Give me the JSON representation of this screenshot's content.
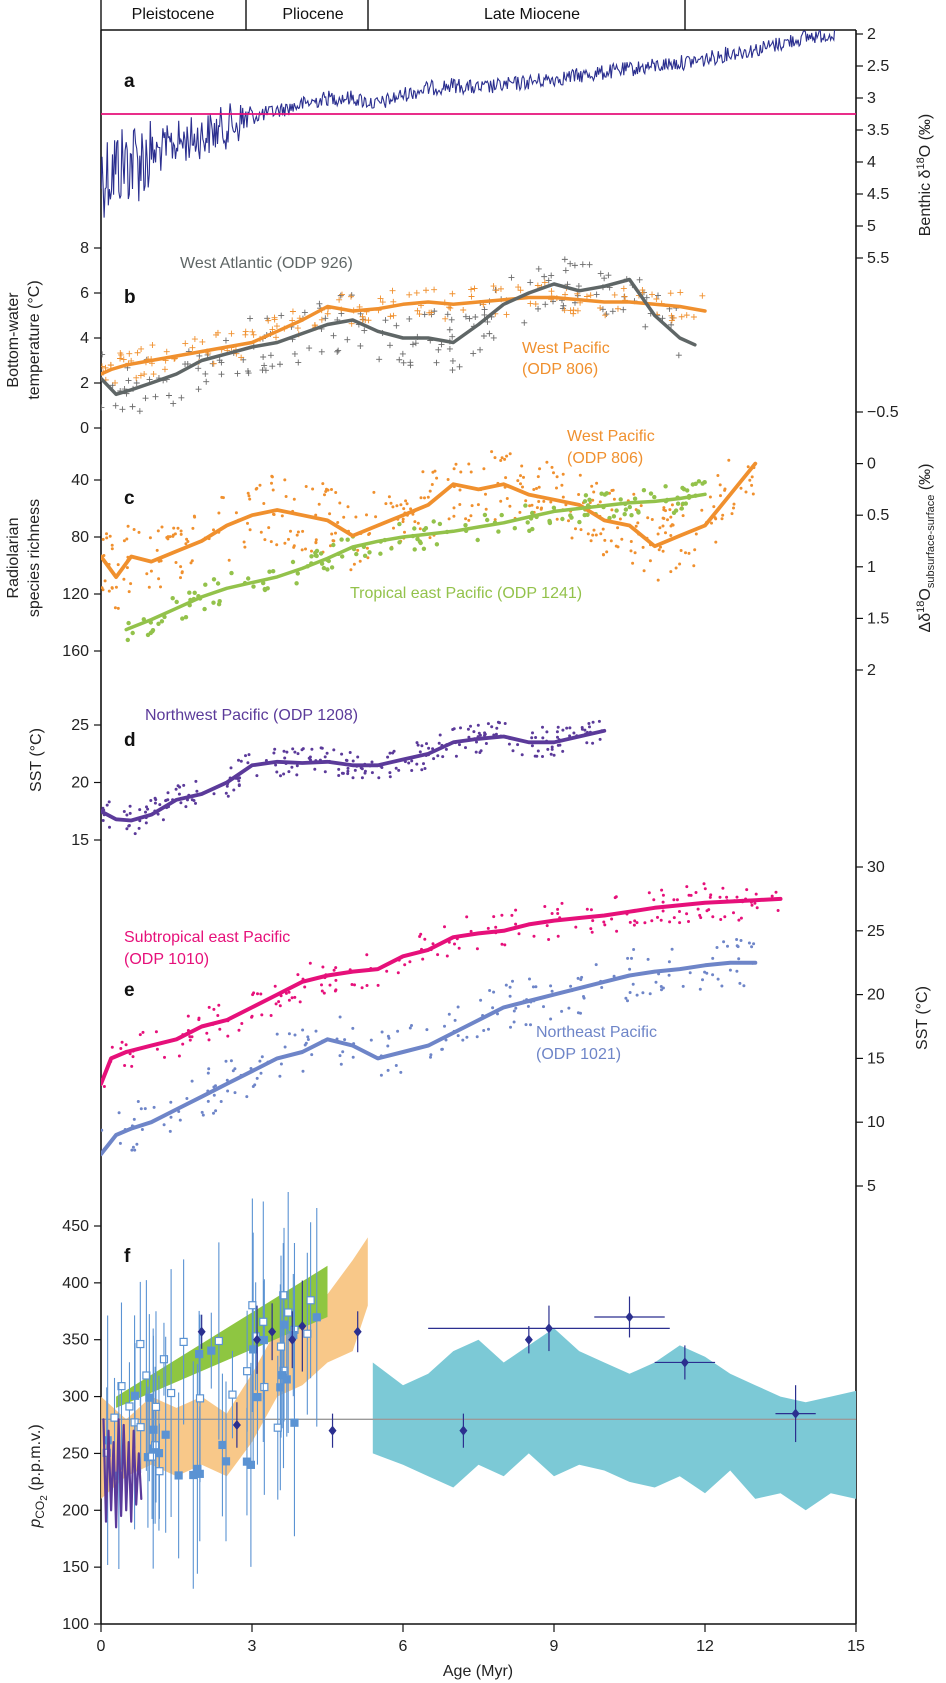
{
  "chart_data": {
    "type": "line",
    "xlabel": "Age (Myr)",
    "x_ticks": [
      0,
      3,
      6,
      9,
      12,
      15
    ],
    "xlim": [
      0,
      15
    ],
    "epochs": [
      {
        "label": "Pleistocene",
        "start": 0,
        "end": 2.9
      },
      {
        "label": "Pliocene",
        "start": 2.9,
        "end": 5.3
      },
      {
        "label": "Late Miocene",
        "start": 5.3,
        "end": 11.6
      }
    ],
    "colors": {
      "navy": "#2b2f8f",
      "pink": "#e6107a",
      "orange": "#f0902e",
      "gray": "#5f6666",
      "green": "#93c24b",
      "purple": "#5b3a9a",
      "blue": "#6e85c8",
      "lightblue": "#5b93d3",
      "cyan": "#7cc9d6",
      "peach": "#f7c27c",
      "brightgreen": "#8ec641"
    },
    "panels": [
      {
        "letter": "a",
        "y_label_right": "Benthic δ18O (‰)",
        "y_ticks_right": [
          "2",
          "2.5",
          "3",
          "3.5",
          "4",
          "4.5",
          "5",
          "5.5"
        ],
        "ylim_right": [
          2,
          5.5
        ],
        "reference_line": 3.25,
        "series": [
          {
            "x": [
              0,
              0.5,
              1,
              1.5,
              2,
              2.5,
              3,
              3.5,
              4,
              4.5,
              5,
              5.5,
              6,
              6.5,
              7,
              7.5,
              8,
              8.5,
              9,
              9.5,
              10,
              10.5,
              11,
              11.5,
              12,
              12.5,
              13,
              13.5,
              14,
              14.5
            ],
            "y": [
              4.2,
              4.0,
              3.9,
              3.7,
              3.6,
              3.45,
              3.3,
              3.2,
              3.1,
              3.0,
              3.0,
              3.1,
              2.95,
              2.85,
              2.8,
              2.85,
              2.8,
              2.75,
              2.7,
              2.65,
              2.6,
              2.55,
              2.5,
              2.45,
              2.4,
              2.3,
              2.25,
              2.15,
              2.05,
              2.0
            ]
          }
        ]
      },
      {
        "letter": "b",
        "y_label_left": "Bottom-water temperature (°C)",
        "y_ticks_left": [
          "0",
          "2",
          "4",
          "6",
          "8"
        ],
        "ylim_left": [
          0,
          8
        ],
        "series": [
          {
            "name": "West Atlantic (ODP 926)",
            "x": [
              0,
              0.3,
              0.6,
              1,
              1.5,
              2,
              2.5,
              3,
              3.5,
              4,
              4.5,
              5,
              5.5,
              6,
              6.5,
              7,
              7.5,
              8,
              8.5,
              9,
              9.5,
              10,
              10.5,
              11,
              11.5,
              11.8
            ],
            "y": [
              2.2,
              1.5,
              1.7,
              2.0,
              2.4,
              3.0,
              3.3,
              3.6,
              3.8,
              4.2,
              4.6,
              4.8,
              4.3,
              4.0,
              4.0,
              3.8,
              4.6,
              5.5,
              6.0,
              6.4,
              6.1,
              6.3,
              6.6,
              5.0,
              4.0,
              3.7
            ]
          },
          {
            "name": "West Pacific (ODP 806)",
            "x": [
              0,
              0.2,
              0.5,
              1,
              1.5,
              2,
              2.5,
              3,
              3.5,
              4,
              4.5,
              5,
              5.5,
              6,
              6.5,
              7,
              7.5,
              8,
              8.5,
              9,
              9.5,
              10,
              10.5,
              11,
              11.5,
              12
            ],
            "y": [
              2.4,
              2.6,
              2.8,
              3.0,
              3.2,
              3.4,
              3.6,
              3.8,
              4.3,
              4.8,
              5.4,
              5.2,
              5.3,
              5.5,
              5.6,
              5.5,
              5.6,
              5.7,
              5.8,
              5.8,
              5.7,
              5.6,
              5.6,
              5.5,
              5.4,
              5.2
            ]
          }
        ]
      },
      {
        "letter": "c",
        "y_label_left": "Radiolarian species richness",
        "y_ticks_left": [
          "40",
          "80",
          "120",
          "160"
        ],
        "ylim_left": [
          30,
          160
        ],
        "y_label_right": "Δδ18O subsurface-surface (‰)",
        "y_ticks_right": [
          "−0.5",
          "0",
          "0.5",
          "1",
          "1.5",
          "2"
        ],
        "ylim_right": [
          -0.5,
          2
        ],
        "series": [
          {
            "name": "West Pacific (ODP 806)",
            "axis": "right",
            "x": [
              0,
              0.3,
              0.6,
              1,
              1.5,
              2,
              2.5,
              3,
              3.5,
              4,
              4.5,
              5,
              5.5,
              6,
              6.5,
              7,
              7.5,
              8,
              8.5,
              9,
              9.5,
              10,
              10.5,
              11,
              11.5,
              12,
              12.5,
              13
            ],
            "y": [
              0.9,
              1.1,
              0.9,
              0.95,
              0.85,
              0.75,
              0.6,
              0.5,
              0.45,
              0.5,
              0.55,
              0.7,
              0.6,
              0.5,
              0.4,
              0.2,
              0.25,
              0.2,
              0.3,
              0.35,
              0.4,
              0.55,
              0.6,
              0.8,
              0.7,
              0.6,
              0.3,
              0.0
            ]
          },
          {
            "name": "Tropical east Pacific (ODP 1241)",
            "axis": "left",
            "x": [
              0.5,
              1,
              1.5,
              2,
              2.5,
              3,
              3.5,
              4,
              4.5,
              5,
              5.5,
              6,
              6.5,
              7,
              7.5,
              8,
              8.5,
              9,
              9.5,
              10,
              10.5,
              11,
              11.5,
              12
            ],
            "y": [
              145,
              138,
              130,
              122,
              116,
              112,
              108,
              102,
              95,
              87,
              83,
              80,
              78,
              76,
              73,
              70,
              66,
              62,
              60,
              58,
              56,
              55,
              53,
              50
            ]
          }
        ]
      },
      {
        "letter": "d",
        "y_label_left": "SST (°C)",
        "y_ticks_left": [
          "15",
          "20",
          "25"
        ],
        "ylim_left": [
          15,
          25
        ],
        "series": [
          {
            "name": "Northwest Pacific (ODP 1208)",
            "x": [
              0,
              0.3,
              0.6,
              1,
              1.5,
              2,
              2.5,
              3,
              3.5,
              4,
              4.5,
              5,
              5.5,
              6,
              6.5,
              7,
              7.5,
              8,
              8.5,
              9,
              9.5,
              10
            ],
            "y": [
              17.5,
              16.8,
              16.7,
              17.2,
              18.5,
              19.0,
              20.0,
              21.5,
              21.8,
              21.7,
              21.8,
              21.5,
              21.5,
              22.0,
              22.5,
              23.5,
              23.8,
              24.0,
              23.5,
              23.5,
              24.0,
              24.5
            ]
          }
        ]
      },
      {
        "letter": "e",
        "y_label_right": "SST (°C)",
        "y_ticks_right": [
          "5",
          "10",
          "15",
          "20",
          "25",
          "30"
        ],
        "ylim_right": [
          5,
          30
        ],
        "series": [
          {
            "name": "Subtropical east Pacific (ODP 1010)",
            "x": [
              0,
              0.2,
              0.5,
              1,
              1.5,
              2,
              2.5,
              3,
              3.5,
              4,
              4.5,
              5,
              5.5,
              6,
              6.5,
              7,
              7.5,
              8,
              8.5,
              9,
              9.5,
              10,
              10.5,
              11,
              11.5,
              12,
              12.5,
              13,
              13.5
            ],
            "y": [
              13.0,
              15.0,
              15.5,
              16.0,
              16.5,
              17.5,
              18.0,
              19.0,
              20.0,
              21.0,
              21.5,
              21.8,
              22.0,
              23.0,
              23.5,
              24.5,
              24.8,
              25.0,
              25.5,
              25.8,
              26.0,
              26.2,
              26.5,
              26.8,
              27.0,
              27.2,
              27.3,
              27.4,
              27.5
            ]
          },
          {
            "name": "Northeast Pacific (ODP 1021)",
            "x": [
              0,
              0.3,
              0.6,
              1,
              1.5,
              2,
              2.5,
              3,
              3.5,
              4,
              4.5,
              5,
              5.5,
              6,
              6.5,
              7,
              7.5,
              8,
              8.5,
              9,
              9.5,
              10,
              10.5,
              11,
              11.5,
              12,
              12.5,
              13
            ],
            "y": [
              7.5,
              9.0,
              9.5,
              10.0,
              11.0,
              12.0,
              13.0,
              14.0,
              15.0,
              15.5,
              16.5,
              16.0,
              15.0,
              15.5,
              16.0,
              17.0,
              18.0,
              19.0,
              19.5,
              20.0,
              20.5,
              21.0,
              21.5,
              21.8,
              22.0,
              22.3,
              22.5,
              22.5
            ]
          }
        ]
      },
      {
        "letter": "f",
        "y_label_left": "pCO2 (p.p.m.v.)",
        "y_ticks_left": [
          "100",
          "150",
          "200",
          "250",
          "300",
          "350",
          "400",
          "450"
        ],
        "ylim_left": [
          100,
          480
        ],
        "reference_line": 280,
        "series": [
          {
            "name": "ice core",
            "x": [
              0.05,
              0.1,
              0.15,
              0.2,
              0.25,
              0.3,
              0.35,
              0.4,
              0.45,
              0.5,
              0.55,
              0.6,
              0.65,
              0.7,
              0.75,
              0.8
            ],
            "y": [
              280,
              190,
              270,
              200,
              260,
              185,
              280,
              195,
              275,
              200,
              260,
              190,
              270,
              205,
              250,
              210
            ]
          },
          {
            "name": "band",
            "x": [
              0,
              0.5,
              1,
              1.5,
              2,
              2.5,
              3,
              3.5,
              4,
              4.5,
              5,
              5.3
            ],
            "lower": [
              210,
              230,
              240,
              230,
              240,
              230,
              260,
              300,
              310,
              330,
              340,
              380
            ],
            "upper": [
              300,
              280,
              300,
              290,
              300,
              285,
              320,
              360,
              370,
              390,
              420,
              440
            ]
          },
          {
            "name": "green wedge",
            "x": [
              0.3,
              4.5
            ],
            "lower": [
              290,
              370
            ],
            "upper": [
              300,
              415
            ]
          },
          {
            "name": "cyan",
            "x": [
              5.4,
              6,
              6.5,
              7,
              7.5,
              8,
              8.5,
              9,
              9.5,
              10,
              10.5,
              11,
              11.5,
              12,
              12.5,
              13,
              13.5,
              14,
              14.5,
              15
            ],
            "lower": [
              250,
              240,
              230,
              220,
              240,
              230,
              250,
              230,
              240,
              235,
              225,
              220,
              230,
              215,
              235,
              210,
              215,
              200,
              215,
              210
            ],
            "upper": [
              330,
              310,
              320,
              340,
              350,
              330,
              345,
              360,
              340,
              330,
              320,
              330,
              345,
              335,
              320,
              310,
              300,
              295,
              300,
              305
            ]
          },
          {
            "name": "diamonds",
            "x": [
              2.0,
              2.7,
              3.1,
              3.4,
              3.8,
              4.0,
              4.6,
              5.1,
              7.2,
              8.5,
              8.9,
              10.5,
              11.6,
              13.8
            ],
            "y": [
              357,
              275,
              350,
              357,
              350,
              362,
              270,
              357,
              270,
              350,
              360,
              370,
              330,
              285
            ],
            "xerr": [
              0,
              0,
              0,
              0,
              0,
              0,
              0,
              0,
              0,
              0,
              2.4,
              0.7,
              0.6,
              0.4
            ],
            "yerr": [
              15,
              20,
              30,
              25,
              25,
              40,
              15,
              18,
              15,
              12,
              20,
              18,
              15,
              25
            ]
          }
        ]
      }
    ]
  }
}
